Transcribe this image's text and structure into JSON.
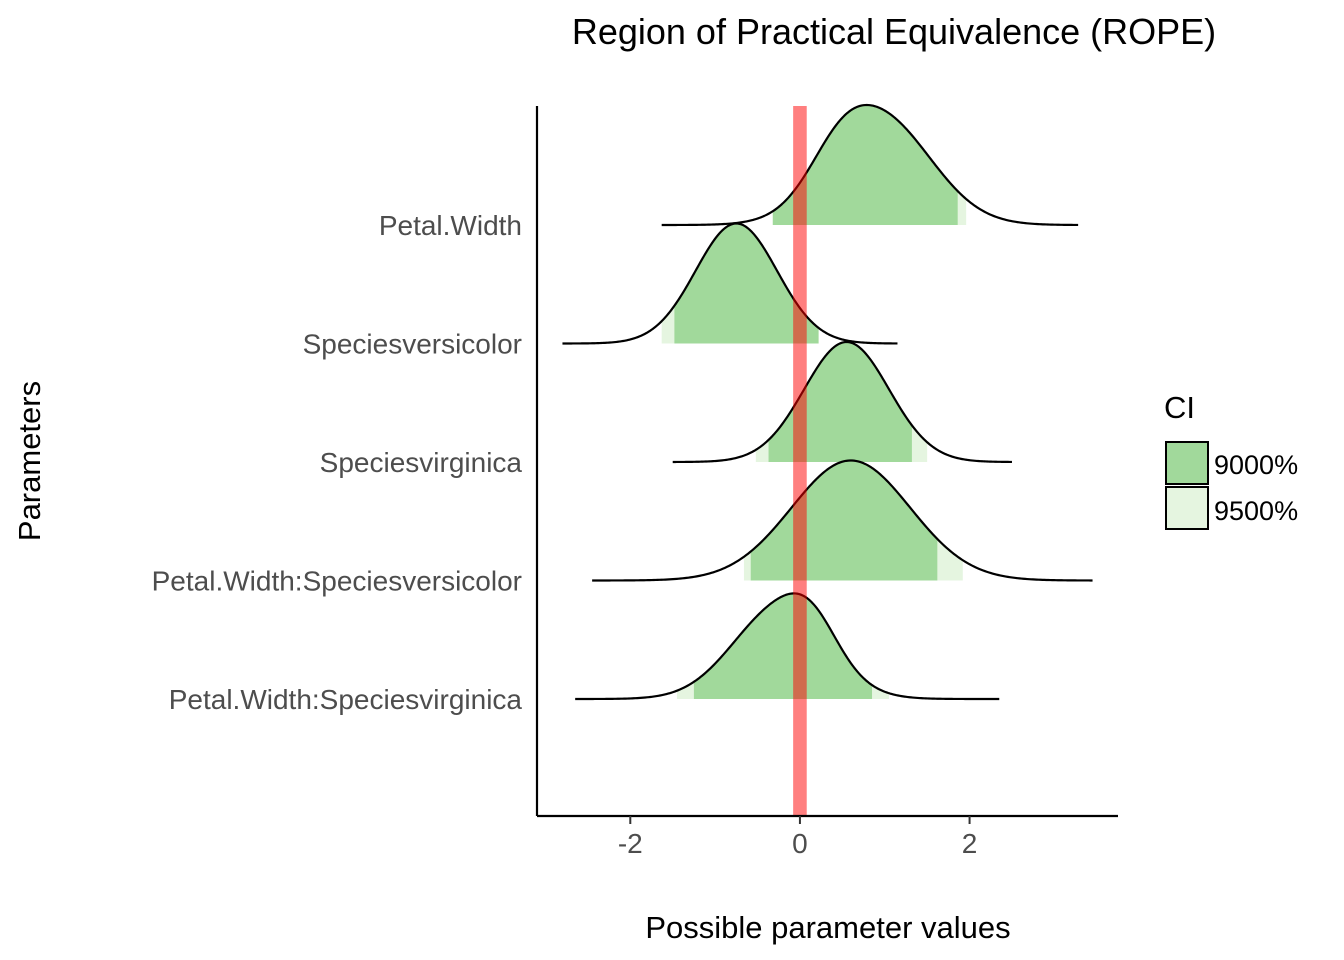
{
  "chart_data": {
    "type": "density-ridgeline",
    "title": "Region of Practical Equivalence (ROPE)",
    "xlabel": "Possible parameter values",
    "ylabel": "Parameters",
    "xlim": [
      -3.1,
      3.75
    ],
    "x_ticks": [
      -2,
      0,
      2
    ],
    "x_tick_labels": [
      "-2",
      "0",
      "2"
    ],
    "grid": false,
    "rope": {
      "low": -0.08,
      "high": 0.08,
      "color": "#ff0000"
    },
    "legend": {
      "title": "CI",
      "position": "right",
      "entries": [
        {
          "label": "9000%",
          "color": "#a1d99b"
        },
        {
          "label": "9500%",
          "color": "#e5f5e0"
        }
      ]
    },
    "parameters": [
      {
        "name": "Petal.Width",
        "min": -1.63,
        "max": 3.28,
        "ci90": [
          -0.32,
          1.86
        ],
        "ci95": [
          -0.32,
          1.96
        ],
        "peaks": [
          {
            "mu": 0.95,
            "sd": 0.6,
            "w": 1.0
          },
          {
            "mu": 0.45,
            "sd": 0.35,
            "w": 0.25
          }
        ],
        "peak_height": 1.0
      },
      {
        "name": "Speciesversicolor",
        "min": -2.8,
        "max": 1.15,
        "ci90": [
          -1.48,
          0.22
        ],
        "ci95": [
          -1.63,
          0.22
        ],
        "peaks": [
          {
            "mu": -0.75,
            "sd": 0.48,
            "w": 1.0
          }
        ],
        "peak_height": 1.0
      },
      {
        "name": "Speciesvirginica",
        "min": -1.5,
        "max": 2.5,
        "ci90": [
          -0.37,
          1.32
        ],
        "ci95": [
          -0.52,
          1.5
        ],
        "peaks": [
          {
            "mu": 0.55,
            "sd": 0.5,
            "w": 1.0
          }
        ],
        "peak_height": 1.0
      },
      {
        "name": "Petal.Width:Speciesversicolor",
        "min": -2.45,
        "max": 3.45,
        "ci90": [
          -0.58,
          1.62
        ],
        "ci95": [
          -0.66,
          1.92
        ],
        "peaks": [
          {
            "mu": 0.6,
            "sd": 0.7,
            "w": 1.0
          }
        ],
        "peak_height": 1.0
      },
      {
        "name": "Petal.Width:Speciesvirginica",
        "min": -2.65,
        "max": 2.35,
        "ci90": [
          -1.25,
          0.85
        ],
        "ci95": [
          -1.45,
          1.05
        ],
        "peaks": [
          {
            "mu": -0.25,
            "sd": 0.55,
            "w": 1.0
          },
          {
            "mu": 0.15,
            "sd": 0.3,
            "w": 0.3
          }
        ],
        "peak_height": 0.88
      }
    ]
  }
}
